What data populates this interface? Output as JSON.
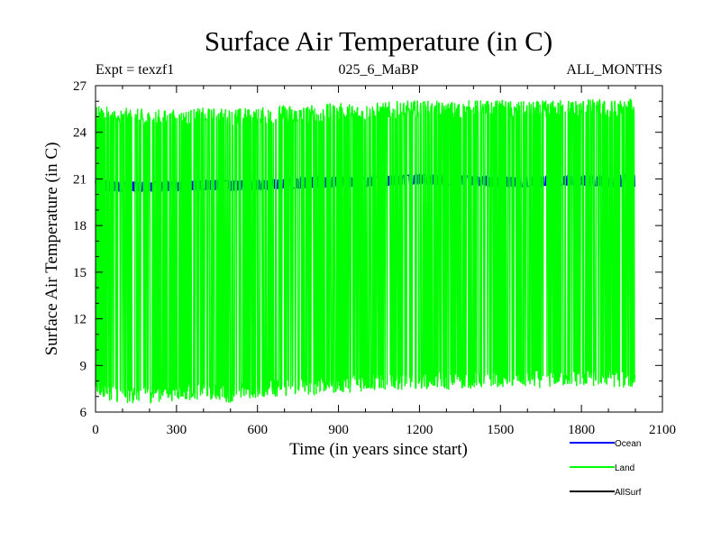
{
  "chart_data": {
    "type": "line",
    "title": "Surface Air Temperature (in C)",
    "subtitle_left": "Expt = texzf1",
    "subtitle_center": "025_6_MaBP",
    "subtitle_right": "ALL_MONTHS",
    "xlabel": "Time (in years since start)",
    "ylabel": "Surface Air Temperature (in C)",
    "xlim": [
      0,
      2100
    ],
    "ylim": [
      6,
      27
    ],
    "xticks": [
      0,
      300,
      600,
      900,
      1200,
      1500,
      1800,
      2100
    ],
    "yticks": [
      6,
      9,
      12,
      15,
      18,
      21,
      24,
      27
    ],
    "legend_placement": "bottom-right",
    "series": [
      {
        "name": "Ocean",
        "color": "#0000ff",
        "x": [
          0,
          100,
          200,
          300,
          400,
          500,
          600,
          700,
          800,
          900,
          1000,
          1100,
          1200,
          1300,
          1400,
          1500,
          1600,
          1700,
          1800,
          1900,
          2000
        ],
        "min": [
          20.2,
          20.2,
          20.2,
          20.2,
          20.3,
          20.3,
          20.3,
          20.4,
          20.4,
          20.5,
          20.5,
          20.6,
          20.7,
          20.6,
          20.6,
          20.5,
          20.5,
          20.6,
          20.6,
          20.5,
          20.5
        ],
        "max": [
          20.9,
          20.8,
          20.8,
          20.8,
          20.9,
          20.9,
          20.9,
          21.0,
          21.1,
          21.1,
          21.1,
          21.2,
          21.3,
          21.2,
          21.2,
          21.1,
          21.1,
          21.2,
          21.2,
          21.2,
          21.3
        ]
      },
      {
        "name": "Land",
        "color": "#00ff00",
        "x": [
          0,
          100,
          200,
          300,
          400,
          500,
          600,
          700,
          800,
          900,
          1000,
          1100,
          1200,
          1300,
          1400,
          1500,
          1600,
          1700,
          1800,
          1900,
          2000
        ],
        "min": [
          7.0,
          6.5,
          6.6,
          6.7,
          6.8,
          6.6,
          6.9,
          7.0,
          7.1,
          7.2,
          7.3,
          7.4,
          7.5,
          7.4,
          7.5,
          7.6,
          7.5,
          7.6,
          7.6,
          7.6,
          7.5
        ],
        "max": [
          25.7,
          25.6,
          25.5,
          25.5,
          25.6,
          25.6,
          25.6,
          25.8,
          25.8,
          25.9,
          25.9,
          26.0,
          26.1,
          26.0,
          26.1,
          26.1,
          26.0,
          26.1,
          26.2,
          26.1,
          26.2
        ]
      },
      {
        "name": "AllSurf",
        "color": "#000000",
        "x": [],
        "min": [],
        "max": []
      }
    ]
  }
}
